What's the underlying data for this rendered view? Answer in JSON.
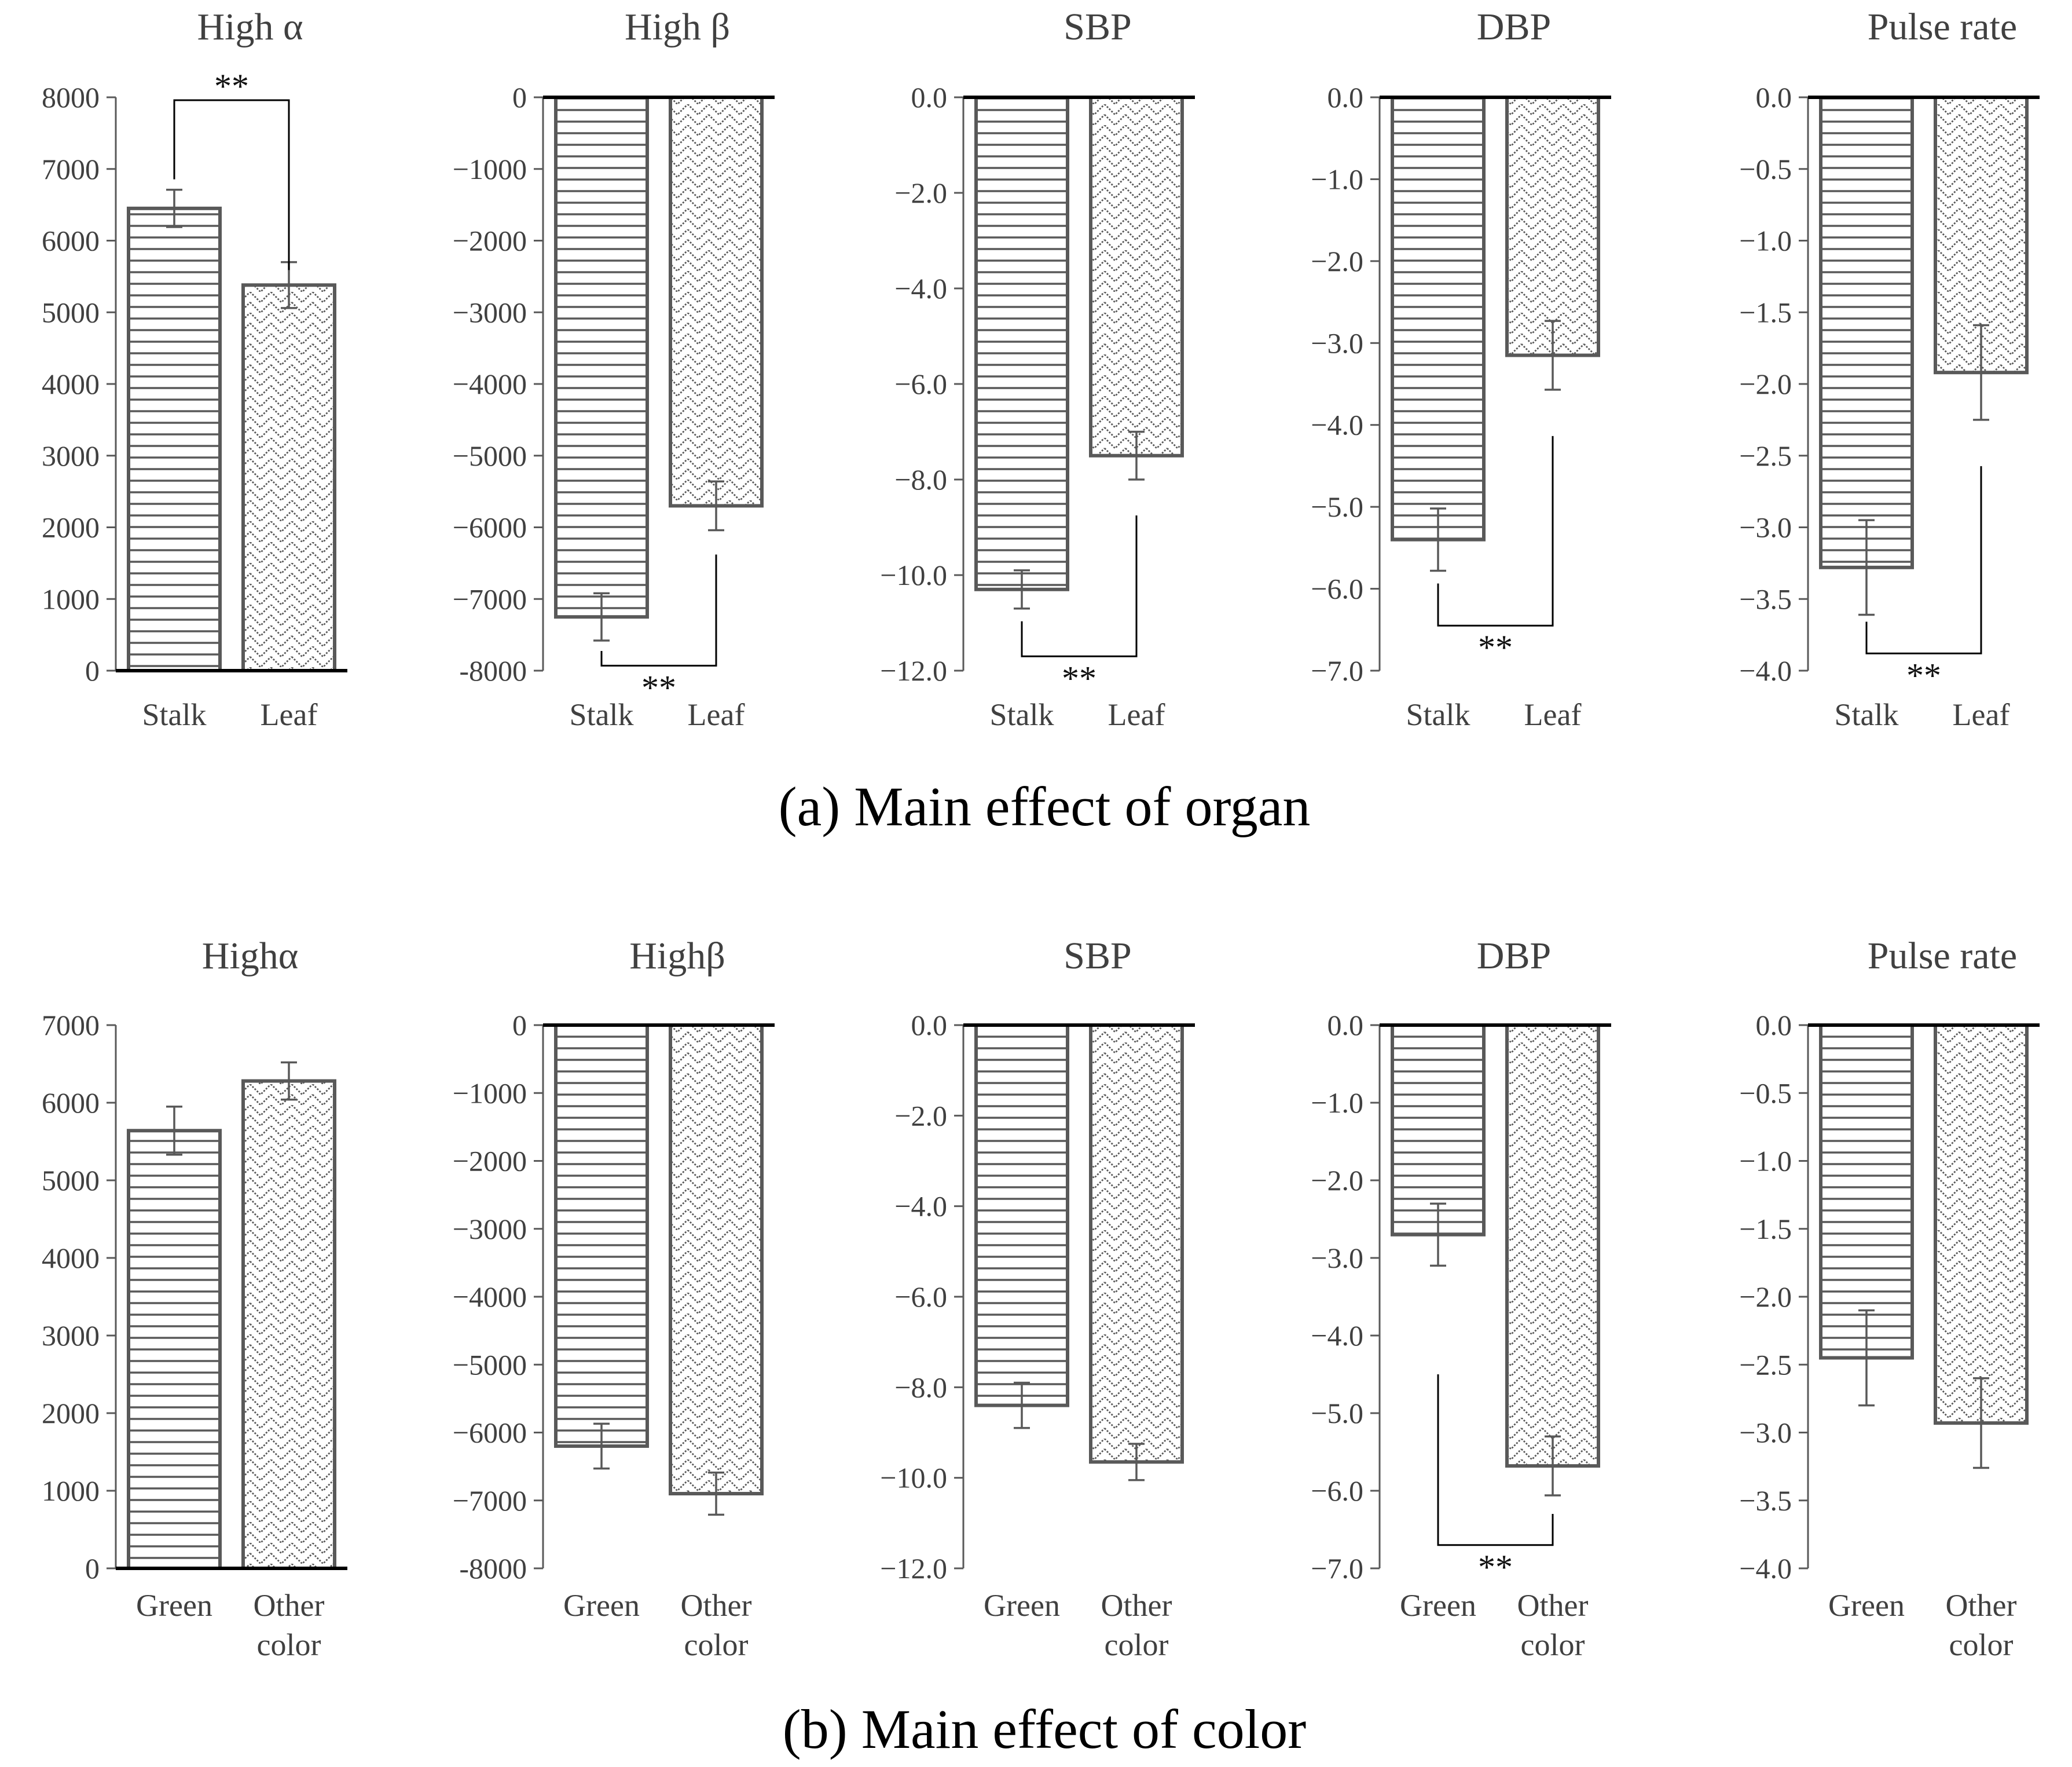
{
  "figure": {
    "caption_a": "(a) Main effect of organ",
    "caption_b": "(b) Main effect of color",
    "bar_color": "#595959",
    "text_color": "#404040"
  },
  "chart_data": [
    {
      "id": "a1",
      "type": "bar",
      "title": "High α",
      "categories": [
        "Stalk",
        "Leaf"
      ],
      "values": [
        6450,
        5380
      ],
      "errors": [
        260,
        320
      ],
      "ylim": [
        0,
        8000
      ],
      "yticks": [
        "0",
        "1000",
        "2000",
        "3000",
        "4000",
        "5000",
        "6000",
        "7000",
        "8000"
      ],
      "significance": "**"
    },
    {
      "id": "a2",
      "type": "bar",
      "title": "High β",
      "categories": [
        "Stalk",
        "Leaf"
      ],
      "values": [
        -7250,
        -5700
      ],
      "errors": [
        330,
        340
      ],
      "ylim": [
        -8000,
        0
      ],
      "yticks": [
        "0",
        "−1000",
        "−2000",
        "−3000",
        "−4000",
        "−5000",
        "−6000",
        "−7000",
        "-8000"
      ],
      "significance": "**"
    },
    {
      "id": "a3",
      "type": "bar",
      "title": "SBP",
      "categories": [
        "Stalk",
        "Leaf"
      ],
      "values": [
        -10.3,
        -7.5
      ],
      "errors": [
        0.4,
        0.5
      ],
      "ylim": [
        -12,
        0
      ],
      "yticks": [
        "0.0",
        "−2.0",
        "−4.0",
        "−6.0",
        "−8.0",
        "−10.0",
        "−12.0"
      ],
      "significance": "**"
    },
    {
      "id": "a4",
      "type": "bar",
      "title": "DBP",
      "categories": [
        "Stalk",
        "Leaf"
      ],
      "values": [
        -5.4,
        -3.15
      ],
      "errors": [
        0.38,
        0.42
      ],
      "ylim": [
        -7,
        0
      ],
      "yticks": [
        "0.0",
        "−1.0",
        "−2.0",
        "−3.0",
        "−4.0",
        "−5.0",
        "−6.0",
        "−7.0"
      ],
      "significance": "**"
    },
    {
      "id": "a5",
      "type": "bar",
      "title": "Pulse rate",
      "categories": [
        "Stalk",
        "Leaf"
      ],
      "values": [
        -3.28,
        -1.92
      ],
      "errors": [
        0.33,
        0.33
      ],
      "ylim": [
        -4,
        0
      ],
      "yticks": [
        "0.0",
        "−0.5",
        "−1.0",
        "−1.5",
        "−2.0",
        "−2.5",
        "−3.0",
        "−3.5",
        "−4.0"
      ],
      "significance": "**"
    },
    {
      "id": "b1",
      "type": "bar",
      "title": "Highα",
      "categories": [
        "Green",
        "Other color"
      ],
      "values": [
        5640,
        6280
      ],
      "errors": [
        310,
        240
      ],
      "ylim": [
        0,
        7000
      ],
      "yticks": [
        "0",
        "1000",
        "2000",
        "3000",
        "4000",
        "5000",
        "6000",
        "7000"
      ],
      "significance": ""
    },
    {
      "id": "b2",
      "type": "bar",
      "title": "Highβ",
      "categories": [
        "Green",
        "Other color"
      ],
      "values": [
        -6200,
        -6900
      ],
      "errors": [
        330,
        310
      ],
      "ylim": [
        -8000,
        0
      ],
      "yticks": [
        "0",
        "−1000",
        "−2000",
        "−3000",
        "−4000",
        "−5000",
        "−6000",
        "−7000",
        "-8000"
      ],
      "significance": ""
    },
    {
      "id": "b3",
      "type": "bar",
      "title": "SBP",
      "categories": [
        "Green",
        "Other color"
      ],
      "values": [
        -8.4,
        -9.65
      ],
      "errors": [
        0.5,
        0.4
      ],
      "ylim": [
        -12,
        0
      ],
      "yticks": [
        "0.0",
        "−2.0",
        "−4.0",
        "−6.0",
        "−8.0",
        "−10.0",
        "−12.0"
      ],
      "significance": ""
    },
    {
      "id": "b4",
      "type": "bar",
      "title": "DBP",
      "categories": [
        "Green",
        "Other color"
      ],
      "values": [
        -2.7,
        -5.68
      ],
      "errors": [
        0.4,
        0.38
      ],
      "ylim": [
        -7,
        0
      ],
      "yticks": [
        "0.0",
        "−1.0",
        "−2.0",
        "−3.0",
        "−4.0",
        "−5.0",
        "−6.0",
        "−7.0"
      ],
      "significance": "**"
    },
    {
      "id": "b5",
      "type": "bar",
      "title": "Pulse rate",
      "categories": [
        "Green",
        "Other color"
      ],
      "values": [
        -2.45,
        -2.93
      ],
      "errors": [
        0.35,
        0.33
      ],
      "ylim": [
        -4,
        0
      ],
      "yticks": [
        "0.0",
        "−0.5",
        "−1.0",
        "−1.5",
        "−2.0",
        "−2.5",
        "−3.0",
        "−3.5",
        "−4.0"
      ],
      "significance": ""
    }
  ]
}
